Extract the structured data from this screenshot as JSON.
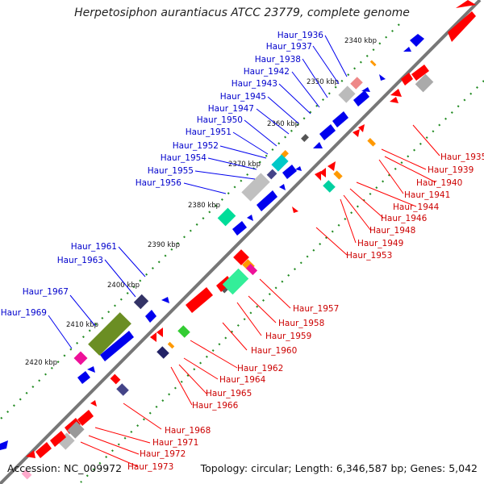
{
  "title": "Herpetosiphon aurantiacus ATCC 23779, complete genome",
  "footer": {
    "accession": "Accession: NC_009972",
    "summary": "Topology: circular; Length: 6,346,587 bp; Genes: 5,042"
  },
  "colors": {
    "backbone": "#777777",
    "tick": "#228B22",
    "forward": "#0000ee",
    "reverse": "#ff0000",
    "label_forward": "#0000cc",
    "label_reverse": "#cc0000",
    "grey": "#aaaaaa",
    "cyan": "#00d0c0",
    "green_light": "#33dd88",
    "olive": "#6b8e23",
    "magenta": "#ee1199",
    "pink": "#ee8888",
    "orange": "#ff9900",
    "navy": "#222266",
    "purple": "#444488",
    "green": "#33cc33"
  },
  "scale_labels": [
    "2340 kbp",
    "2350 kbp",
    "2360 kbp",
    "2370 kbp",
    "2380 kbp",
    "2390 kbp",
    "2400 kbp",
    "2410 kbp",
    "2420 kbp"
  ],
  "forward_labels": [
    "Haur_1936",
    "Haur_1937",
    "Haur_1938",
    "Haur_1942",
    "Haur_1943",
    "Haur_1945",
    "Haur_1947",
    "Haur_1950",
    "Haur_1951",
    "Haur_1952",
    "Haur_1954",
    "Haur_1955",
    "Haur_1956",
    "Haur_1961",
    "Haur_1963",
    "Haur_1967",
    "Haur_1969"
  ],
  "reverse_labels": [
    "Haur_1935",
    "Haur_1939",
    "Haur_1940",
    "Haur_1941",
    "Haur_1944",
    "Haur_1946",
    "Haur_1948",
    "Haur_1949",
    "Haur_1953",
    "Haur_1957",
    "Haur_1958",
    "Haur_1959",
    "Haur_1960",
    "Haur_1962",
    "Haur_1964",
    "Haur_1965",
    "Haur_1966",
    "Haur_1968",
    "Haur_1971",
    "Haur_1972",
    "Haur_1973"
  ]
}
